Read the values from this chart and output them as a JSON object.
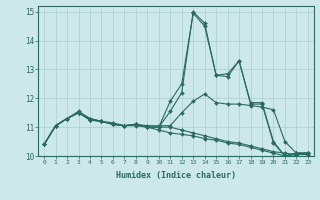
{
  "xlabel": "Humidex (Indice chaleur)",
  "xlim": [
    -0.5,
    23.5
  ],
  "ylim": [
    10,
    15.2
  ],
  "yticks": [
    10,
    11,
    12,
    13,
    14,
    15
  ],
  "xticks": [
    0,
    1,
    2,
    3,
    4,
    5,
    6,
    7,
    8,
    9,
    10,
    11,
    12,
    13,
    14,
    15,
    16,
    17,
    18,
    19,
    20,
    21,
    22,
    23
  ],
  "bg_color": "#cce8e8",
  "grid_color": "#aacece",
  "line_color": "#2a6a60",
  "lines": [
    [
      10.4,
      11.05,
      11.3,
      11.55,
      11.3,
      11.2,
      11.15,
      11.05,
      11.05,
      11.0,
      11.0,
      11.55,
      12.2,
      15.0,
      14.6,
      12.8,
      12.85,
      13.3,
      11.85,
      11.85,
      10.5,
      10.0,
      10.1,
      10.1
    ],
    [
      10.4,
      11.05,
      11.3,
      11.5,
      11.3,
      11.2,
      11.1,
      11.05,
      11.1,
      11.0,
      11.0,
      11.9,
      12.5,
      14.95,
      14.5,
      12.8,
      12.75,
      13.3,
      11.8,
      11.8,
      10.45,
      10.0,
      10.1,
      10.1
    ],
    [
      10.4,
      11.05,
      11.3,
      11.5,
      11.25,
      11.2,
      11.1,
      11.05,
      11.1,
      11.0,
      11.0,
      11.0,
      10.9,
      10.8,
      10.7,
      10.6,
      10.5,
      10.45,
      10.35,
      10.25,
      10.15,
      10.1,
      10.05,
      10.1
    ],
    [
      10.4,
      11.05,
      11.3,
      11.5,
      11.25,
      11.2,
      11.1,
      11.05,
      11.1,
      11.05,
      11.05,
      11.05,
      11.5,
      11.9,
      12.15,
      11.85,
      11.8,
      11.8,
      11.75,
      11.7,
      11.6,
      10.5,
      10.1,
      10.1
    ],
    [
      10.4,
      11.05,
      11.3,
      11.5,
      11.25,
      11.2,
      11.1,
      11.05,
      11.1,
      11.0,
      10.9,
      10.8,
      10.75,
      10.7,
      10.6,
      10.55,
      10.45,
      10.4,
      10.3,
      10.2,
      10.1,
      10.0,
      10.05,
      10.05
    ]
  ]
}
